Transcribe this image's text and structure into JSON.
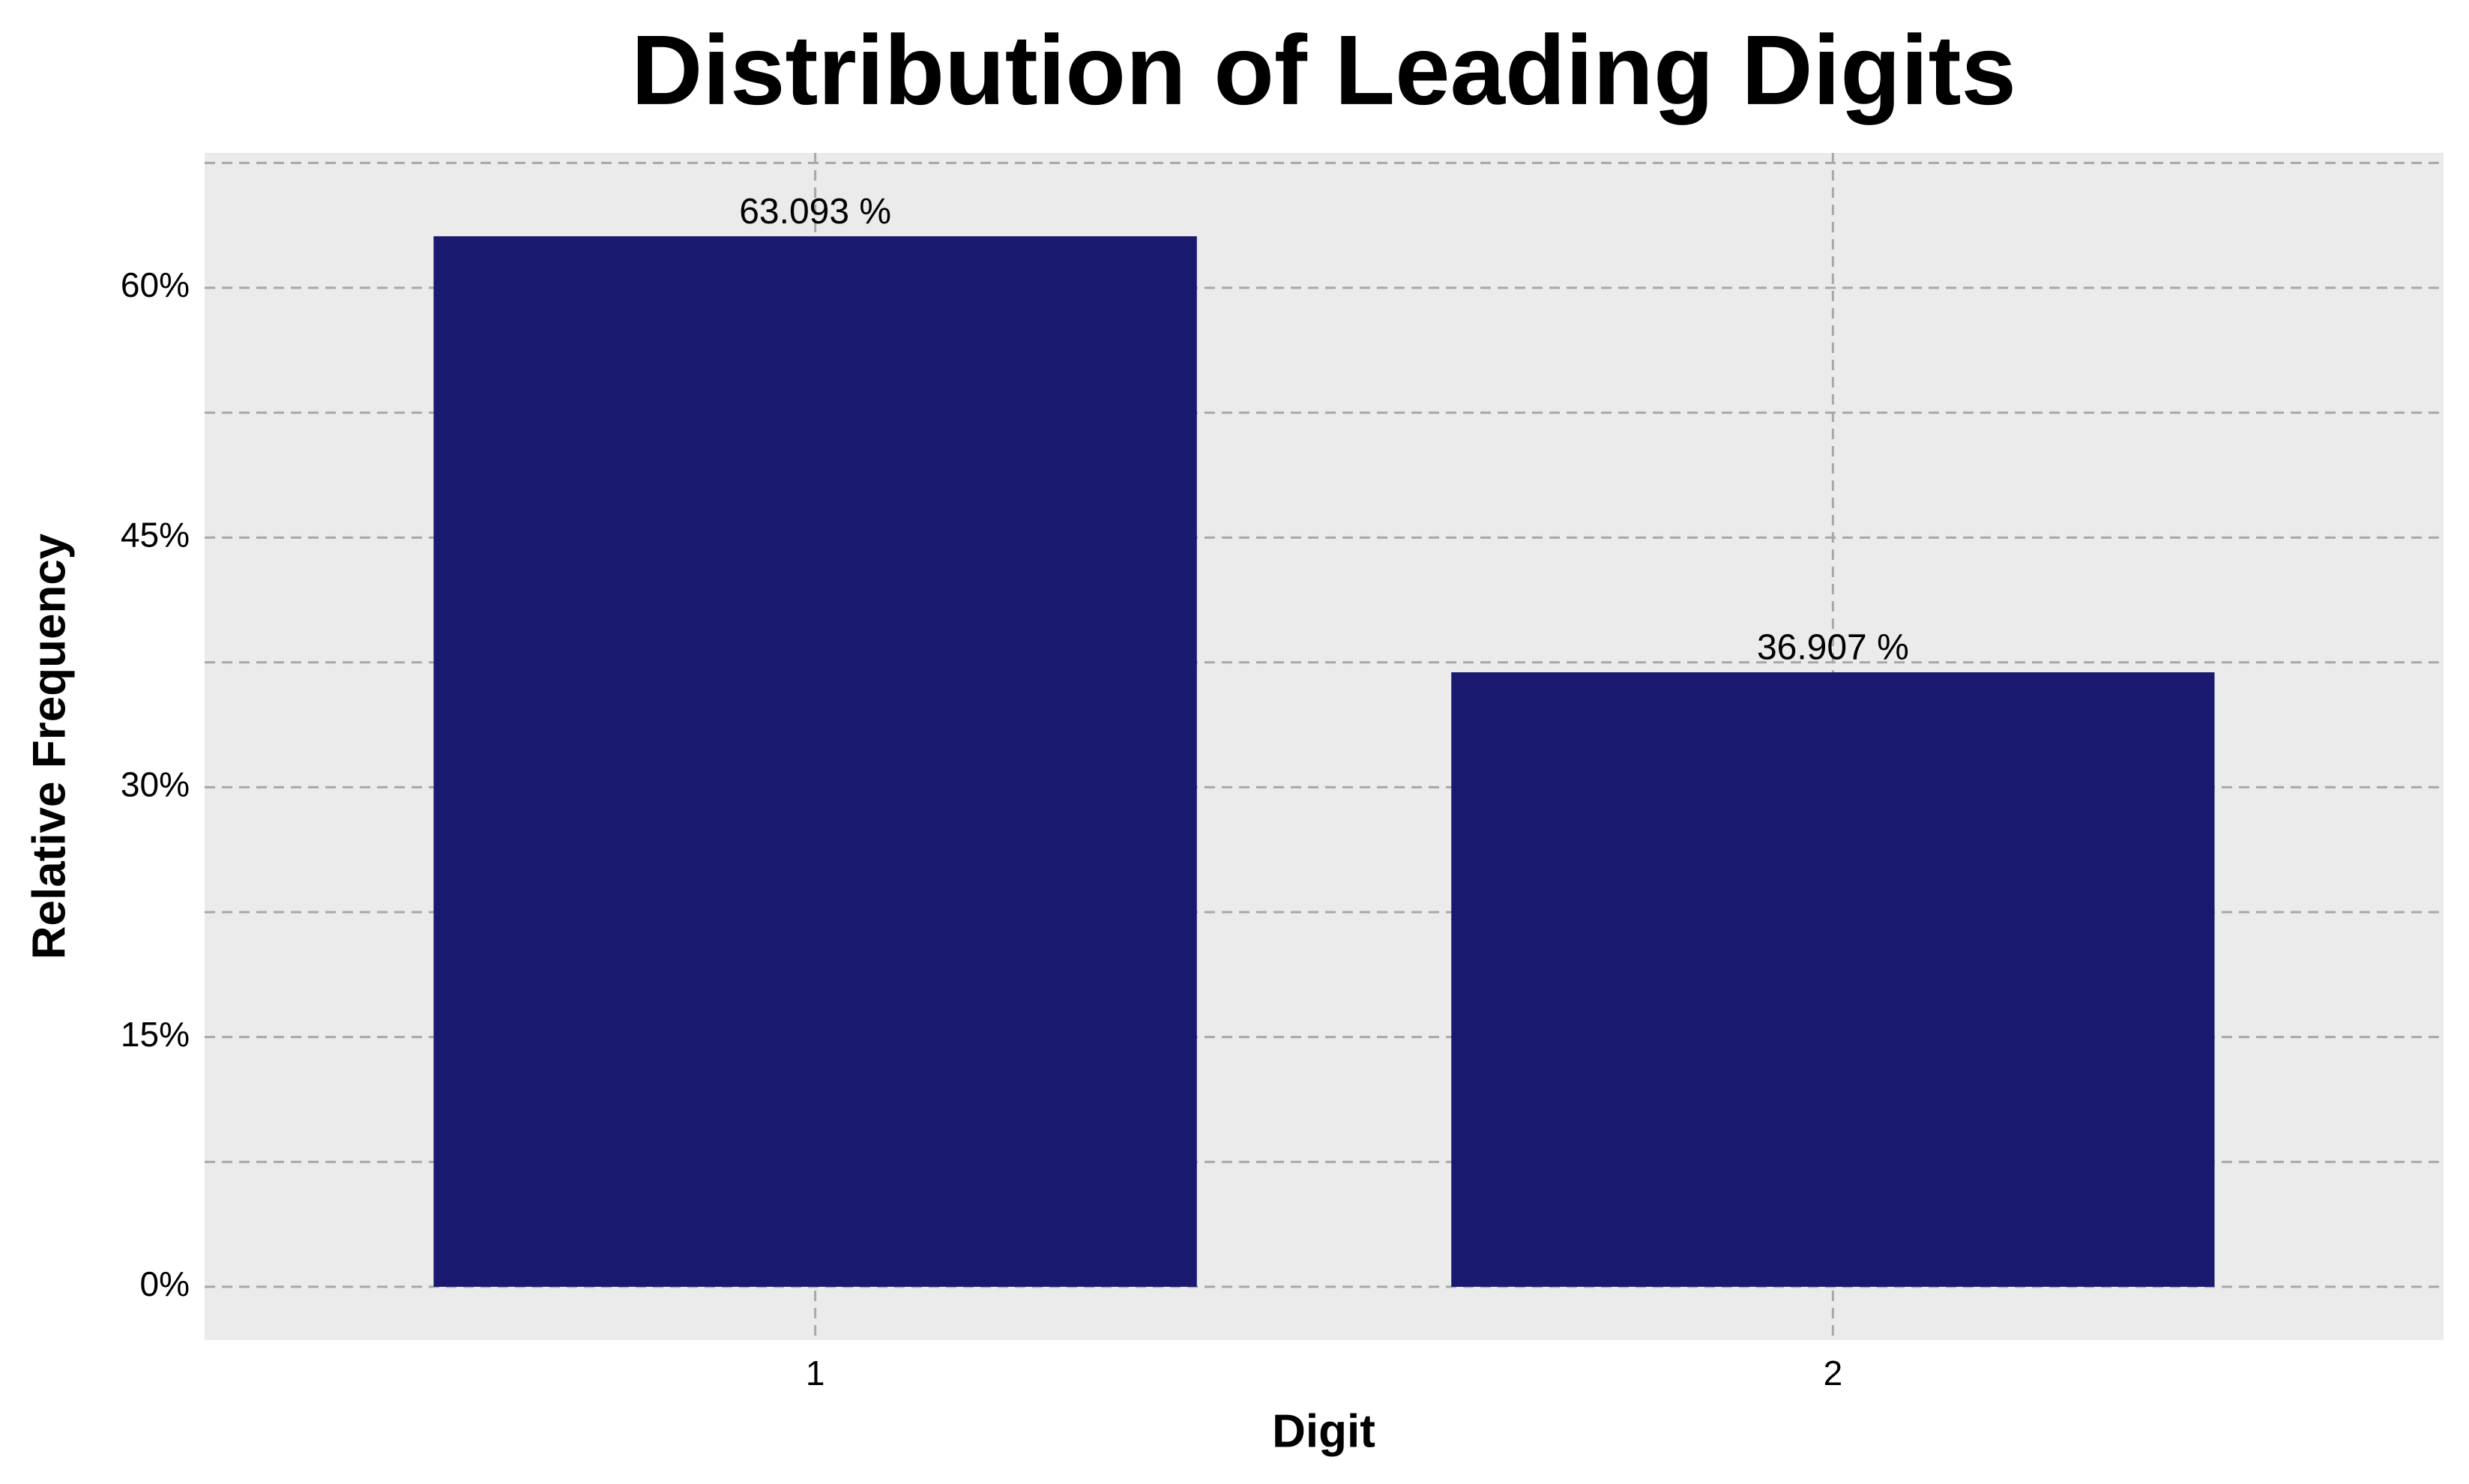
{
  "chart_data": {
    "type": "bar",
    "title": "Distribution of Leading Digits",
    "x_label": "Digit",
    "y_label": "Relative Frequency",
    "categories": [
      "1",
      "2"
    ],
    "values": [
      63.093,
      36.907
    ],
    "value_labels": [
      "63.093 %",
      "36.907 %"
    ],
    "color": "#191970",
    "ylim": [
      -3.2,
      68.1
    ],
    "yticks": [
      {
        "value": 0,
        "label": "0%"
      },
      {
        "value": 15,
        "label": "15%"
      },
      {
        "value": 30,
        "label": "30%"
      },
      {
        "value": 45,
        "label": "45%"
      },
      {
        "value": 60,
        "label": "60%"
      }
    ],
    "yminorticks": [
      7.5,
      22.5,
      37.5,
      52.5,
      67.5
    ],
    "grid": true
  }
}
